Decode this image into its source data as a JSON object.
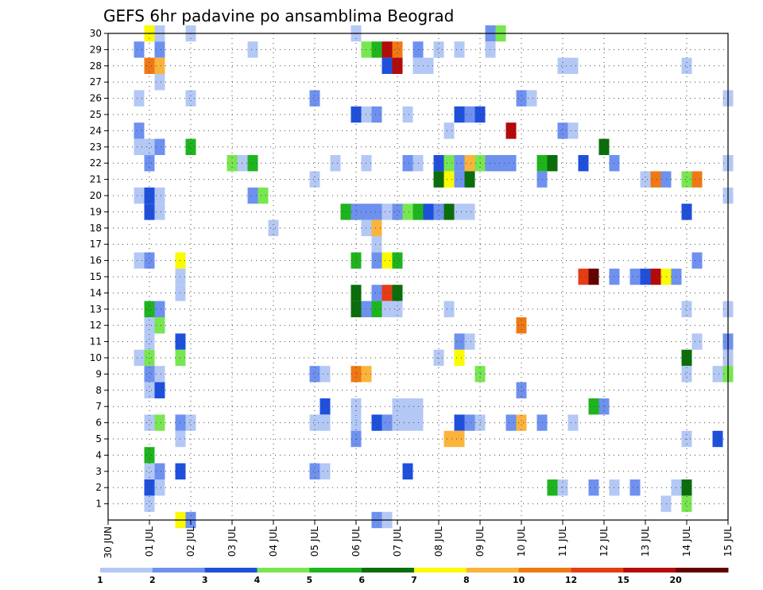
{
  "chart_data": {
    "type": "heatmap",
    "title": "GEFS 6hr padavine po ansamblima Beograd",
    "x_axis": {
      "unit": "day",
      "start": "30 JUN",
      "range": [
        0,
        15
      ],
      "ticks": [
        {
          "x": 0,
          "label": "30 JUN"
        },
        {
          "x": 1,
          "label": "01 JUL"
        },
        {
          "x": 2,
          "label": "02 JUL"
        },
        {
          "x": 3,
          "label": "03 JUL"
        },
        {
          "x": 4,
          "label": "04 JUL"
        },
        {
          "x": 5,
          "label": "05 JUL"
        },
        {
          "x": 6,
          "label": "06 JUL"
        },
        {
          "x": 7,
          "label": "07 JUL"
        },
        {
          "x": 8,
          "label": "08 JUL"
        },
        {
          "x": 9,
          "label": "09 JUL"
        },
        {
          "x": 10,
          "label": "10 JUL"
        },
        {
          "x": 11,
          "label": "11 JUL"
        },
        {
          "x": 12,
          "label": "12 JUL"
        },
        {
          "x": 13,
          "label": "13 JUL"
        },
        {
          "x": 14,
          "label": "14 JUL"
        },
        {
          "x": 15,
          "label": "15 JUL"
        }
      ]
    },
    "y_axis": {
      "range": [
        0,
        30
      ],
      "ticks": [
        1,
        2,
        3,
        4,
        5,
        6,
        7,
        8,
        9,
        10,
        11,
        12,
        13,
        14,
        15,
        16,
        17,
        18,
        19,
        20,
        21,
        22,
        23,
        24,
        25,
        26,
        27,
        28,
        29,
        30
      ]
    },
    "grid": true,
    "colorbar": {
      "placement": "bottom",
      "levels": [
        {
          "label": "1",
          "color": "#b4c8f5"
        },
        {
          "label": "2",
          "color": "#6e91f0"
        },
        {
          "label": "3",
          "color": "#1e50dc"
        },
        {
          "label": "4",
          "color": "#78e650"
        },
        {
          "label": "5",
          "color": "#1eb41e"
        },
        {
          "label": "6",
          "color": "#0a6e0a"
        },
        {
          "label": "7",
          "color": "#fafa00"
        },
        {
          "label": "8",
          "color": "#fab43c"
        },
        {
          "label": "10",
          "color": "#f07814"
        },
        {
          "label": "12",
          "color": "#e63c14"
        },
        {
          "label": "15",
          "color": "#b40a0a"
        },
        {
          "label": "20",
          "color": "#640000"
        }
      ]
    },
    "cells": [
      {
        "x": 1,
        "y": 30,
        "c": 6
      },
      {
        "x": 1.25,
        "y": 30,
        "c": 0
      },
      {
        "x": 2,
        "y": 30,
        "c": 0
      },
      {
        "x": 6,
        "y": 30,
        "c": 0
      },
      {
        "x": 9.25,
        "y": 30,
        "c": 1
      },
      {
        "x": 9.5,
        "y": 30,
        "c": 3
      },
      {
        "x": 0.75,
        "y": 29,
        "c": 1
      },
      {
        "x": 1.25,
        "y": 29,
        "c": 1
      },
      {
        "x": 3.5,
        "y": 29,
        "c": 0
      },
      {
        "x": 6.25,
        "y": 29,
        "c": 3
      },
      {
        "x": 6.5,
        "y": 29,
        "c": 4
      },
      {
        "x": 6.75,
        "y": 29,
        "c": 10
      },
      {
        "x": 7,
        "y": 29,
        "c": 8
      },
      {
        "x": 7.5,
        "y": 29,
        "c": 1
      },
      {
        "x": 8,
        "y": 29,
        "c": 0
      },
      {
        "x": 8.5,
        "y": 29,
        "c": 0
      },
      {
        "x": 9.25,
        "y": 29,
        "c": 0
      },
      {
        "x": 1,
        "y": 28,
        "c": 8
      },
      {
        "x": 1.25,
        "y": 28,
        "c": 7
      },
      {
        "x": 6.75,
        "y": 28,
        "c": 2
      },
      {
        "x": 7,
        "y": 28,
        "c": 10
      },
      {
        "x": 7.5,
        "y": 28,
        "c": 0
      },
      {
        "x": 7.75,
        "y": 28,
        "c": 0
      },
      {
        "x": 11,
        "y": 28,
        "c": 0
      },
      {
        "x": 11.25,
        "y": 28,
        "c": 0
      },
      {
        "x": 14,
        "y": 28,
        "c": 0
      },
      {
        "x": 1.25,
        "y": 27,
        "c": 0
      },
      {
        "x": 0.75,
        "y": 26,
        "c": 0
      },
      {
        "x": 2,
        "y": 26,
        "c": 0
      },
      {
        "x": 5,
        "y": 26,
        "c": 1
      },
      {
        "x": 10,
        "y": 26,
        "c": 1
      },
      {
        "x": 10.25,
        "y": 26,
        "c": 0
      },
      {
        "x": 15,
        "y": 26,
        "c": 0
      },
      {
        "x": 6,
        "y": 25,
        "c": 2
      },
      {
        "x": 6.25,
        "y": 25,
        "c": 0
      },
      {
        "x": 6.5,
        "y": 25,
        "c": 1
      },
      {
        "x": 7.25,
        "y": 25,
        "c": 0
      },
      {
        "x": 8.5,
        "y": 25,
        "c": 2
      },
      {
        "x": 8.75,
        "y": 25,
        "c": 1
      },
      {
        "x": 9,
        "y": 25,
        "c": 2
      },
      {
        "x": 0.75,
        "y": 24,
        "c": 1
      },
      {
        "x": 8.25,
        "y": 24,
        "c": 0
      },
      {
        "x": 9.75,
        "y": 24,
        "c": 10
      },
      {
        "x": 11,
        "y": 24,
        "c": 1
      },
      {
        "x": 11.25,
        "y": 24,
        "c": 0
      },
      {
        "x": 0.75,
        "y": 23,
        "c": 0
      },
      {
        "x": 1,
        "y": 23,
        "c": 0
      },
      {
        "x": 1.25,
        "y": 23,
        "c": 1
      },
      {
        "x": 2,
        "y": 23,
        "c": 4
      },
      {
        "x": 12,
        "y": 23,
        "c": 5
      },
      {
        "x": 1,
        "y": 22,
        "c": 1
      },
      {
        "x": 3,
        "y": 22,
        "c": 3
      },
      {
        "x": 3.25,
        "y": 22,
        "c": 0
      },
      {
        "x": 3.5,
        "y": 22,
        "c": 4
      },
      {
        "x": 5.5,
        "y": 22,
        "c": 0
      },
      {
        "x": 6.25,
        "y": 22,
        "c": 0
      },
      {
        "x": 7.25,
        "y": 22,
        "c": 1
      },
      {
        "x": 7.5,
        "y": 22,
        "c": 0
      },
      {
        "x": 8,
        "y": 22,
        "c": 2
      },
      {
        "x": 8.25,
        "y": 22,
        "c": 3
      },
      {
        "x": 8.5,
        "y": 22,
        "c": 1
      },
      {
        "x": 8.75,
        "y": 22,
        "c": 7
      },
      {
        "x": 9,
        "y": 22,
        "c": 3
      },
      {
        "x": 9.25,
        "y": 22,
        "c": 1
      },
      {
        "x": 9.5,
        "y": 22,
        "c": 1
      },
      {
        "x": 9.75,
        "y": 22,
        "c": 1
      },
      {
        "x": 10.5,
        "y": 22,
        "c": 4
      },
      {
        "x": 10.75,
        "y": 22,
        "c": 5
      },
      {
        "x": 11.5,
        "y": 22,
        "c": 2
      },
      {
        "x": 12.25,
        "y": 22,
        "c": 1
      },
      {
        "x": 15,
        "y": 22,
        "c": 0
      },
      {
        "x": 5,
        "y": 21,
        "c": 0
      },
      {
        "x": 8,
        "y": 21,
        "c": 5
      },
      {
        "x": 8.25,
        "y": 21,
        "c": 6
      },
      {
        "x": 8.5,
        "y": 21,
        "c": 1
      },
      {
        "x": 8.75,
        "y": 21,
        "c": 5
      },
      {
        "x": 10.5,
        "y": 21,
        "c": 1
      },
      {
        "x": 13,
        "y": 21,
        "c": 0
      },
      {
        "x": 13.25,
        "y": 21,
        "c": 8
      },
      {
        "x": 13.5,
        "y": 21,
        "c": 1
      },
      {
        "x": 14,
        "y": 21,
        "c": 3
      },
      {
        "x": 14.25,
        "y": 21,
        "c": 8
      },
      {
        "x": 0.75,
        "y": 20,
        "c": 0
      },
      {
        "x": 1,
        "y": 20,
        "c": 2
      },
      {
        "x": 1.25,
        "y": 20,
        "c": 0
      },
      {
        "x": 3.5,
        "y": 20,
        "c": 1
      },
      {
        "x": 3.75,
        "y": 20,
        "c": 3
      },
      {
        "x": 15,
        "y": 20,
        "c": 0
      },
      {
        "x": 1,
        "y": 19,
        "c": 2
      },
      {
        "x": 1.25,
        "y": 19,
        "c": 0
      },
      {
        "x": 5.75,
        "y": 19,
        "c": 4
      },
      {
        "x": 6,
        "y": 19,
        "c": 1
      },
      {
        "x": 6.25,
        "y": 19,
        "c": 1
      },
      {
        "x": 6.5,
        "y": 19,
        "c": 1
      },
      {
        "x": 6.75,
        "y": 19,
        "c": 0
      },
      {
        "x": 7,
        "y": 19,
        "c": 1
      },
      {
        "x": 7.25,
        "y": 19,
        "c": 3
      },
      {
        "x": 7.5,
        "y": 19,
        "c": 4
      },
      {
        "x": 7.75,
        "y": 19,
        "c": 2
      },
      {
        "x": 8,
        "y": 19,
        "c": 1
      },
      {
        "x": 8.25,
        "y": 19,
        "c": 5
      },
      {
        "x": 8.5,
        "y": 19,
        "c": 0
      },
      {
        "x": 8.75,
        "y": 19,
        "c": 0
      },
      {
        "x": 14,
        "y": 19,
        "c": 2
      },
      {
        "x": 4,
        "y": 18,
        "c": 0
      },
      {
        "x": 6.25,
        "y": 18,
        "c": 0
      },
      {
        "x": 6.5,
        "y": 18,
        "c": 7
      },
      {
        "x": 6.5,
        "y": 17,
        "c": 0
      },
      {
        "x": 0.75,
        "y": 16,
        "c": 0
      },
      {
        "x": 1,
        "y": 16,
        "c": 1
      },
      {
        "x": 1.75,
        "y": 16,
        "c": 6
      },
      {
        "x": 6,
        "y": 16,
        "c": 4
      },
      {
        "x": 6.5,
        "y": 16,
        "c": 1
      },
      {
        "x": 6.75,
        "y": 16,
        "c": 6
      },
      {
        "x": 7,
        "y": 16,
        "c": 4
      },
      {
        "x": 14.25,
        "y": 16,
        "c": 1
      },
      {
        "x": 1.75,
        "y": 15,
        "c": 0
      },
      {
        "x": 11.5,
        "y": 15,
        "c": 9
      },
      {
        "x": 11.75,
        "y": 15,
        "c": 11
      },
      {
        "x": 12.25,
        "y": 15,
        "c": 1
      },
      {
        "x": 12.75,
        "y": 15,
        "c": 1
      },
      {
        "x": 13,
        "y": 15,
        "c": 2
      },
      {
        "x": 13.25,
        "y": 15,
        "c": 10
      },
      {
        "x": 13.5,
        "y": 15,
        "c": 6
      },
      {
        "x": 13.75,
        "y": 15,
        "c": 1
      },
      {
        "x": 1.75,
        "y": 14,
        "c": 0
      },
      {
        "x": 6,
        "y": 14,
        "c": 5
      },
      {
        "x": 6.5,
        "y": 14,
        "c": 1
      },
      {
        "x": 6.75,
        "y": 14,
        "c": 9
      },
      {
        "x": 7,
        "y": 14,
        "c": 5
      },
      {
        "x": 1,
        "y": 13,
        "c": 4
      },
      {
        "x": 1.25,
        "y": 13,
        "c": 1
      },
      {
        "x": 6,
        "y": 13,
        "c": 5
      },
      {
        "x": 6.25,
        "y": 13,
        "c": 1
      },
      {
        "x": 6.5,
        "y": 13,
        "c": 4
      },
      {
        "x": 6.75,
        "y": 13,
        "c": 0
      },
      {
        "x": 7,
        "y": 13,
        "c": 0
      },
      {
        "x": 8.25,
        "y": 13,
        "c": 0
      },
      {
        "x": 14,
        "y": 13,
        "c": 0
      },
      {
        "x": 15,
        "y": 13,
        "c": 0
      },
      {
        "x": 1,
        "y": 12,
        "c": 0
      },
      {
        "x": 1.25,
        "y": 12,
        "c": 3
      },
      {
        "x": 10,
        "y": 12,
        "c": 8
      },
      {
        "x": 1,
        "y": 11,
        "c": 0
      },
      {
        "x": 1.75,
        "y": 11,
        "c": 2
      },
      {
        "x": 8.5,
        "y": 11,
        "c": 1
      },
      {
        "x": 8.75,
        "y": 11,
        "c": 0
      },
      {
        "x": 14.25,
        "y": 11,
        "c": 0
      },
      {
        "x": 15,
        "y": 11,
        "c": 1
      },
      {
        "x": 0.75,
        "y": 10,
        "c": 0
      },
      {
        "x": 1,
        "y": 10,
        "c": 3
      },
      {
        "x": 1.75,
        "y": 10,
        "c": 3
      },
      {
        "x": 8,
        "y": 10,
        "c": 0
      },
      {
        "x": 8.5,
        "y": 10,
        "c": 6
      },
      {
        "x": 14,
        "y": 10,
        "c": 5
      },
      {
        "x": 15,
        "y": 10,
        "c": 0
      },
      {
        "x": 1,
        "y": 9,
        "c": 1
      },
      {
        "x": 1.25,
        "y": 9,
        "c": 0
      },
      {
        "x": 5,
        "y": 9,
        "c": 1
      },
      {
        "x": 5.25,
        "y": 9,
        "c": 0
      },
      {
        "x": 6,
        "y": 9,
        "c": 8
      },
      {
        "x": 6.25,
        "y": 9,
        "c": 7
      },
      {
        "x": 9,
        "y": 9,
        "c": 3
      },
      {
        "x": 14,
        "y": 9,
        "c": 0
      },
      {
        "x": 14.75,
        "y": 9,
        "c": 0
      },
      {
        "x": 15,
        "y": 9,
        "c": 3
      },
      {
        "x": 1,
        "y": 8,
        "c": 0
      },
      {
        "x": 1.25,
        "y": 8,
        "c": 2
      },
      {
        "x": 10,
        "y": 8,
        "c": 1
      },
      {
        "x": 5.25,
        "y": 7,
        "c": 2
      },
      {
        "x": 6,
        "y": 7,
        "c": 0
      },
      {
        "x": 7,
        "y": 7,
        "c": 0
      },
      {
        "x": 7.25,
        "y": 7,
        "c": 0
      },
      {
        "x": 7.5,
        "y": 7,
        "c": 0
      },
      {
        "x": 11.75,
        "y": 7,
        "c": 4
      },
      {
        "x": 12,
        "y": 7,
        "c": 1
      },
      {
        "x": 1,
        "y": 6,
        "c": 0
      },
      {
        "x": 1.25,
        "y": 6,
        "c": 3
      },
      {
        "x": 1.75,
        "y": 6,
        "c": 1
      },
      {
        "x": 2,
        "y": 6,
        "c": 0
      },
      {
        "x": 5,
        "y": 6,
        "c": 0
      },
      {
        "x": 5.25,
        "y": 6,
        "c": 0
      },
      {
        "x": 6,
        "y": 6,
        "c": 0
      },
      {
        "x": 6.5,
        "y": 6,
        "c": 2
      },
      {
        "x": 6.75,
        "y": 6,
        "c": 1
      },
      {
        "x": 7,
        "y": 6,
        "c": 0
      },
      {
        "x": 7.25,
        "y": 6,
        "c": 0
      },
      {
        "x": 7.5,
        "y": 6,
        "c": 0
      },
      {
        "x": 8.5,
        "y": 6,
        "c": 2
      },
      {
        "x": 8.75,
        "y": 6,
        "c": 1
      },
      {
        "x": 9,
        "y": 6,
        "c": 0
      },
      {
        "x": 9.75,
        "y": 6,
        "c": 1
      },
      {
        "x": 10,
        "y": 6,
        "c": 7
      },
      {
        "x": 10.5,
        "y": 6,
        "c": 1
      },
      {
        "x": 11.25,
        "y": 6,
        "c": 0
      },
      {
        "x": 1.75,
        "y": 5,
        "c": 0
      },
      {
        "x": 6,
        "y": 5,
        "c": 1
      },
      {
        "x": 8.25,
        "y": 5,
        "c": 7
      },
      {
        "x": 8.5,
        "y": 5,
        "c": 7
      },
      {
        "x": 14,
        "y": 5,
        "c": 0
      },
      {
        "x": 14.75,
        "y": 5,
        "c": 2
      },
      {
        "x": 1,
        "y": 4,
        "c": 4
      },
      {
        "x": 1,
        "y": 3,
        "c": 0
      },
      {
        "x": 1.25,
        "y": 3,
        "c": 1
      },
      {
        "x": 1.75,
        "y": 3,
        "c": 2
      },
      {
        "x": 5,
        "y": 3,
        "c": 1
      },
      {
        "x": 5.25,
        "y": 3,
        "c": 0
      },
      {
        "x": 7.25,
        "y": 3,
        "c": 2
      },
      {
        "x": 1,
        "y": 2,
        "c": 2
      },
      {
        "x": 1.25,
        "y": 2,
        "c": 0
      },
      {
        "x": 10.75,
        "y": 2,
        "c": 4
      },
      {
        "x": 11,
        "y": 2,
        "c": 0
      },
      {
        "x": 11.75,
        "y": 2,
        "c": 1
      },
      {
        "x": 12.25,
        "y": 2,
        "c": 0
      },
      {
        "x": 12.75,
        "y": 2,
        "c": 1
      },
      {
        "x": 13.75,
        "y": 2,
        "c": 0
      },
      {
        "x": 14,
        "y": 2,
        "c": 5
      },
      {
        "x": 1,
        "y": 1,
        "c": 0
      },
      {
        "x": 13.5,
        "y": 1,
        "c": 0
      },
      {
        "x": 14,
        "y": 1,
        "c": 3
      },
      {
        "x": 1.75,
        "y": 0,
        "c": 6
      },
      {
        "x": 2,
        "y": 0,
        "c": 1
      },
      {
        "x": 6.5,
        "y": 0,
        "c": 1
      },
      {
        "x": 6.75,
        "y": 0,
        "c": 0
      }
    ]
  }
}
